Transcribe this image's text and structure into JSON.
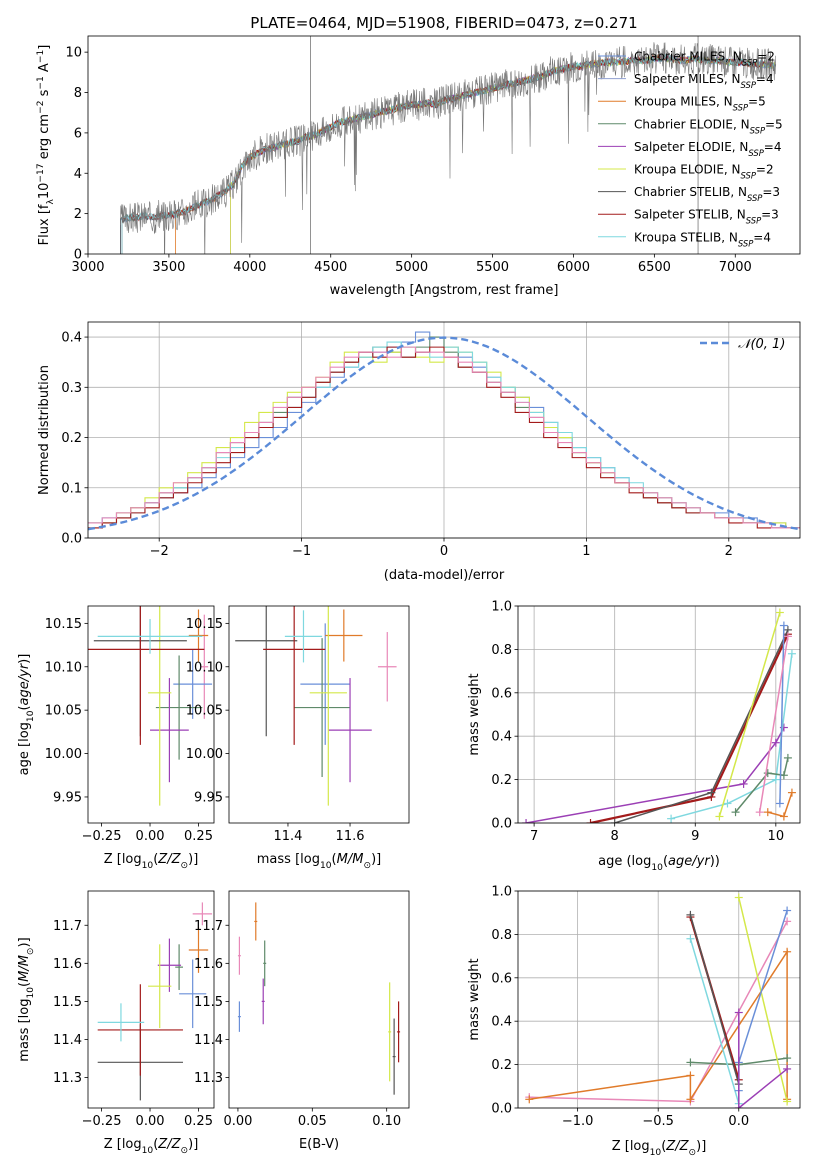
{
  "title": "PLATE=0464, MJD=51908, FIBERID=0473, z=0.271",
  "colors": {
    "chabrier_miles": "#6a8fd8",
    "salpeter_miles": "#8f9fd0",
    "kroupa_miles": "#e07b2a",
    "chabrier_elodie": "#5f8a6a",
    "salpeter_elodie": "#9b3fb5",
    "kroupa_elodie": "#d4e84a",
    "chabrier_stelib": "#555555",
    "salpeter_stelib": "#a31b1b",
    "kroupa_stelib": "#7fd8df",
    "pink": "#e888b8",
    "gauss": "#5b8bd8"
  },
  "chart_data": [
    {
      "id": "spectrum",
      "type": "line",
      "title": "PLATE=0464, MJD=51908, FIBERID=0473, z=0.271",
      "xlabel": "wavelength [Angstrom, rest frame]",
      "ylabel": "Flux [f_λ 10^-17 erg cm^-2 s^-1 A^-1]",
      "xlim": [
        3000,
        7400
      ],
      "ylim": [
        0,
        10.8
      ],
      "xticks": [
        3000,
        3500,
        4000,
        4500,
        5000,
        5500,
        6000,
        6500,
        7000
      ],
      "yticks": [
        0,
        2,
        4,
        6,
        8,
        10
      ],
      "grid": false,
      "legend": [
        "Chabrier MILES, N_SSP=2",
        "Salpeter MILES, N_SSP=4",
        "Kroupa MILES, N_SSP=5",
        "Chabrier ELODIE, N_SSP=5",
        "Salpeter ELODIE, N_SSP=4",
        "Kroupa ELODIE, N_SSP=2",
        "Chabrier STELIB, N_SSP=3",
        "Salpeter STELIB, N_SSP=3",
        "Kroupa STELIB, N_SSP=4"
      ],
      "legend_placement": "top-right",
      "x": [
        3200,
        3250,
        3300,
        3350,
        3400,
        3450,
        3500,
        3550,
        3600,
        3650,
        3700,
        3750,
        3800,
        3850,
        3900,
        3950,
        4000,
        4050,
        4100,
        4150,
        4200,
        4250,
        4300,
        4350,
        4400,
        4450,
        4500,
        4550,
        4600,
        4650,
        4700,
        4750,
        4800,
        4850,
        4900,
        4950,
        5000,
        5050,
        5100,
        5150,
        5200,
        5250,
        5300,
        5350,
        5400,
        5450,
        5500,
        5550,
        5600,
        5650,
        5700,
        5750,
        5800,
        5850,
        5900,
        5950,
        6000,
        6050,
        6100,
        6150,
        6200,
        6250,
        6300,
        6350,
        6400,
        6450,
        6500,
        6550,
        6600,
        6650,
        6700,
        6750,
        6800,
        6850,
        6900,
        6950,
        7000,
        7050,
        7100,
        7150,
        7200,
        7250
      ],
      "y": [
        1.7,
        1.8,
        1.8,
        1.9,
        1.8,
        1.9,
        1.9,
        2.0,
        2.1,
        2.3,
        2.5,
        2.6,
        2.9,
        3.1,
        3.5,
        4.3,
        4.8,
        5.0,
        5.2,
        5.3,
        5.4,
        5.5,
        5.6,
        5.8,
        5.9,
        6.1,
        6.3,
        6.5,
        6.6,
        6.7,
        6.8,
        6.9,
        7.0,
        7.1,
        7.2,
        7.3,
        7.4,
        7.4,
        7.5,
        7.4,
        7.6,
        7.7,
        7.8,
        7.9,
        8.0,
        8.1,
        8.2,
        8.3,
        8.4,
        8.5,
        8.6,
        8.7,
        8.8,
        9.0,
        9.1,
        9.2,
        9.3,
        9.3,
        9.4,
        9.4,
        9.5,
        9.5,
        9.5,
        9.6,
        9.6,
        9.6,
        9.7,
        9.7,
        9.7,
        9.6,
        9.6,
        9.7,
        9.6,
        9.6,
        9.6,
        9.5,
        9.5,
        9.5,
        9.4,
        9.4,
        9.4,
        9.3
      ]
    },
    {
      "id": "residuals",
      "type": "bar",
      "xlabel": "(data-model)/error",
      "ylabel": "Normed distribution",
      "xlim": [
        -2.5,
        2.5
      ],
      "ylim": [
        0,
        0.43
      ],
      "xticks": [
        -2,
        -1,
        0,
        1,
        2
      ],
      "yticks": [
        0.0,
        0.1,
        0.2,
        0.3,
        0.4
      ],
      "grid": true,
      "legend": [
        "𝒩(0, 1)"
      ],
      "legend_placement": "top-right",
      "bin_width": 0.1,
      "series": [
        {
          "values": [
            0.03,
            0.04,
            0.05,
            0.06,
            0.07,
            0.08,
            0.09,
            0.1,
            0.12,
            0.14,
            0.16,
            0.18,
            0.2,
            0.22,
            0.25,
            0.27,
            0.3,
            0.32,
            0.34,
            0.36,
            0.37,
            0.38,
            0.39,
            0.41,
            0.4,
            0.38,
            0.36,
            0.34,
            0.32,
            0.3,
            0.28,
            0.26,
            0.23,
            0.2,
            0.18,
            0.16,
            0.14,
            0.12,
            0.1,
            0.09,
            0.08,
            0.07,
            0.06,
            0.05,
            0.05,
            0.04,
            0.04,
            0.03,
            0.03,
            0.02
          ]
        },
        {
          "values": [
            0.02,
            0.03,
            0.04,
            0.06,
            0.07,
            0.09,
            0.1,
            0.12,
            0.14,
            0.17,
            0.19,
            0.21,
            0.23,
            0.25,
            0.28,
            0.3,
            0.31,
            0.33,
            0.35,
            0.37,
            0.38,
            0.37,
            0.36,
            0.38,
            0.4,
            0.37,
            0.34,
            0.33,
            0.31,
            0.29,
            0.26,
            0.24,
            0.22,
            0.2,
            0.17,
            0.15,
            0.13,
            0.11,
            0.1,
            0.08,
            0.07,
            0.06,
            0.05,
            0.05,
            0.04,
            0.04,
            0.03,
            0.03,
            0.02,
            0.02
          ]
        },
        {
          "values": [
            0.03,
            0.03,
            0.05,
            0.06,
            0.08,
            0.1,
            0.11,
            0.13,
            0.15,
            0.18,
            0.2,
            0.23,
            0.25,
            0.27,
            0.29,
            0.3,
            0.32,
            0.35,
            0.37,
            0.36,
            0.35,
            0.37,
            0.38,
            0.36,
            0.35,
            0.38,
            0.37,
            0.35,
            0.33,
            0.3,
            0.28,
            0.25,
            0.22,
            0.2,
            0.17,
            0.15,
            0.13,
            0.11,
            0.1,
            0.09,
            0.08,
            0.07,
            0.06,
            0.05,
            0.04,
            0.04,
            0.03,
            0.03,
            0.03,
            0.02
          ]
        },
        {
          "values": [
            0.03,
            0.04,
            0.04,
            0.05,
            0.07,
            0.08,
            0.1,
            0.12,
            0.14,
            0.16,
            0.18,
            0.2,
            0.22,
            0.24,
            0.26,
            0.28,
            0.3,
            0.33,
            0.34,
            0.36,
            0.38,
            0.39,
            0.38,
            0.37,
            0.36,
            0.38,
            0.37,
            0.35,
            0.32,
            0.3,
            0.27,
            0.25,
            0.23,
            0.21,
            0.18,
            0.16,
            0.14,
            0.12,
            0.11,
            0.09,
            0.08,
            0.07,
            0.06,
            0.05,
            0.04,
            0.04,
            0.03,
            0.03,
            0.02,
            0.02
          ]
        },
        {
          "values": [
            0.02,
            0.03,
            0.04,
            0.05,
            0.06,
            0.08,
            0.09,
            0.11,
            0.13,
            0.15,
            0.17,
            0.2,
            0.22,
            0.24,
            0.26,
            0.28,
            0.31,
            0.33,
            0.35,
            0.37,
            0.36,
            0.38,
            0.36,
            0.37,
            0.38,
            0.36,
            0.34,
            0.33,
            0.3,
            0.28,
            0.25,
            0.23,
            0.2,
            0.18,
            0.16,
            0.14,
            0.12,
            0.11,
            0.09,
            0.08,
            0.07,
            0.06,
            0.05,
            0.05,
            0.04,
            0.03,
            0.03,
            0.02,
            0.02,
            0.02
          ]
        },
        {
          "values": [
            0.03,
            0.04,
            0.05,
            0.06,
            0.07,
            0.09,
            0.11,
            0.12,
            0.14,
            0.17,
            0.19,
            0.21,
            0.23,
            0.26,
            0.28,
            0.3,
            0.32,
            0.34,
            0.36,
            0.37,
            0.37,
            0.36,
            0.38,
            0.37,
            0.37,
            0.36,
            0.35,
            0.33,
            0.31,
            0.29,
            0.27,
            0.24,
            0.21,
            0.19,
            0.17,
            0.15,
            0.13,
            0.11,
            0.1,
            0.09,
            0.08,
            0.07,
            0.06,
            0.05,
            0.04,
            0.04,
            0.03,
            0.03,
            0.02,
            0.02
          ]
        }
      ]
    },
    {
      "id": "age_vs_Z",
      "type": "scatter",
      "xlabel": "Z [log10(Z/Z⊙)]",
      "ylabel": "age [log10(age/yr)]",
      "xlim": [
        -0.32,
        0.33
      ],
      "ylim": [
        9.92,
        10.17
      ],
      "xticks": [
        -0.25,
        0.0,
        0.25
      ],
      "yticks": [
        9.95,
        10.0,
        10.05,
        10.1,
        10.15
      ],
      "points": [
        {
          "x": 0.28,
          "y": 10.1,
          "xerr": 0.02,
          "yerr": 0.06
        },
        {
          "x": 0.22,
          "y": 10.08,
          "xerr": 0.1,
          "yerr": 0.04
        },
        {
          "x": 0.25,
          "y": 10.136,
          "xerr": 0.05,
          "yerr": 0.03
        },
        {
          "x": 0.15,
          "y": 10.053,
          "xerr": 0.12,
          "yerr": 0.06
        },
        {
          "x": 0.1,
          "y": 10.027,
          "xerr": 0.1,
          "yerr": 0.06
        },
        {
          "x": 0.05,
          "y": 10.07,
          "xerr": 0.06,
          "yerr": 0.13
        },
        {
          "x": -0.05,
          "y": 10.13,
          "xerr": 0.24,
          "yerr": 0.11
        },
        {
          "x": -0.05,
          "y": 10.12,
          "xerr": 0.33,
          "yerr": 0.11
        },
        {
          "x": 0.0,
          "y": 10.135,
          "xerr": 0.27,
          "yerr": 0.02
        }
      ]
    },
    {
      "id": "age_vs_mass",
      "type": "scatter",
      "xlabel": "mass [log10(M/M⊙)]",
      "ylabel": "",
      "xlim": [
        11.21,
        11.79
      ],
      "ylim": [
        9.92,
        10.17
      ],
      "xticks": [
        11.4,
        11.6
      ],
      "yticks": [
        9.95,
        10.0,
        10.05,
        10.1,
        10.15
      ],
      "points": [
        {
          "x": 11.72,
          "y": 10.1,
          "xerr": 0.03,
          "yerr": 0.04
        },
        {
          "x": 11.52,
          "y": 10.08,
          "xerr": 0.08,
          "yerr": 0.07
        },
        {
          "x": 11.58,
          "y": 10.136,
          "xerr": 0.06,
          "yerr": 0.03
        },
        {
          "x": 11.51,
          "y": 10.053,
          "xerr": 0.09,
          "yerr": 0.08
        },
        {
          "x": 11.6,
          "y": 10.027,
          "xerr": 0.07,
          "yerr": 0.06
        },
        {
          "x": 11.53,
          "y": 10.07,
          "xerr": 0.06,
          "yerr": 0.13
        },
        {
          "x": 11.33,
          "y": 10.13,
          "xerr": 0.1,
          "yerr": 0.11
        },
        {
          "x": 11.42,
          "y": 10.12,
          "xerr": 0.1,
          "yerr": 0.11
        },
        {
          "x": 11.45,
          "y": 10.135,
          "xerr": 0.06,
          "yerr": 0.03
        }
      ]
    },
    {
      "id": "weight_vs_age",
      "type": "line",
      "xlabel": "age (log10(age/yr))",
      "ylabel": "mass weight",
      "xlim": [
        6.8,
        10.3
      ],
      "ylim": [
        0,
        1.0
      ],
      "xticks": [
        7,
        8,
        9,
        10
      ],
      "yticks": [
        0.0,
        0.2,
        0.4,
        0.6,
        0.8,
        1.0
      ],
      "grid": true
    },
    {
      "id": "mass_vs_Z",
      "type": "scatter",
      "xlabel": "Z [log10(Z/Z⊙)]",
      "ylabel": "mass [log10(M/M⊙)]",
      "xlim": [
        -0.32,
        0.33
      ],
      "ylim": [
        11.22,
        11.79
      ],
      "xticks": [
        -0.25,
        0.0,
        0.25
      ],
      "yticks": [
        11.3,
        11.4,
        11.5,
        11.6,
        11.7
      ],
      "points": [
        {
          "x": 0.27,
          "y": 11.73,
          "xerr": 0.05,
          "yerr": 0.03
        },
        {
          "x": 0.22,
          "y": 11.52,
          "xerr": 0.07,
          "yerr": 0.09
        },
        {
          "x": 0.25,
          "y": 11.635,
          "xerr": 0.05,
          "yerr": 0.06
        },
        {
          "x": 0.15,
          "y": 11.59,
          "xerr": 0.02,
          "yerr": 0.06
        },
        {
          "x": 0.1,
          "y": 11.595,
          "xerr": 0.06,
          "yerr": 0.07
        },
        {
          "x": 0.05,
          "y": 11.54,
          "xerr": 0.06,
          "yerr": 0.11
        },
        {
          "x": -0.05,
          "y": 11.34,
          "xerr": 0.22,
          "yerr": 0.1
        },
        {
          "x": -0.05,
          "y": 11.425,
          "xerr": 0.22,
          "yerr": 0.12
        },
        {
          "x": -0.15,
          "y": 11.445,
          "xerr": 0.12,
          "yerr": 0.05
        }
      ]
    },
    {
      "id": "mass_vs_ebv",
      "type": "scatter",
      "xlabel": "E(B-V)",
      "ylabel": "",
      "xlim": [
        -0.006,
        0.115
      ],
      "ylim": [
        11.22,
        11.79
      ],
      "xticks": [
        0.0,
        0.05,
        0.1
      ],
      "yticks": [
        11.3,
        11.4,
        11.5,
        11.6,
        11.7
      ],
      "points": [
        {
          "x": 0.001,
          "y": 11.62,
          "xerr": 0.001,
          "yerr": 0.05
        },
        {
          "x": 0.001,
          "y": 11.46,
          "xerr": 0.001,
          "yerr": 0.04
        },
        {
          "x": 0.012,
          "y": 11.71,
          "xerr": 0.001,
          "yerr": 0.05
        },
        {
          "x": 0.018,
          "y": 11.6,
          "xerr": 0.001,
          "yerr": 0.06
        },
        {
          "x": 0.017,
          "y": 11.5,
          "xerr": 0.001,
          "yerr": 0.06
        },
        {
          "x": 0.102,
          "y": 11.42,
          "xerr": 0.001,
          "yerr": 0.13
        },
        {
          "x": 0.105,
          "y": 11.355,
          "xerr": 0.001,
          "yerr": 0.1
        },
        {
          "x": 0.108,
          "y": 11.42,
          "xerr": 0.001,
          "yerr": 0.08
        }
      ]
    },
    {
      "id": "weight_vs_Z",
      "type": "line",
      "xlabel": "Z [log10(Z/Z⊙)]",
      "ylabel": "mass weight",
      "xlim": [
        -1.37,
        0.38
      ],
      "ylim": [
        0,
        1.0
      ],
      "xticks": [
        -1.0,
        -0.5,
        0.0
      ],
      "yticks": [
        0.0,
        0.2,
        0.4,
        0.6,
        0.8,
        1.0
      ],
      "grid": true
    }
  ]
}
